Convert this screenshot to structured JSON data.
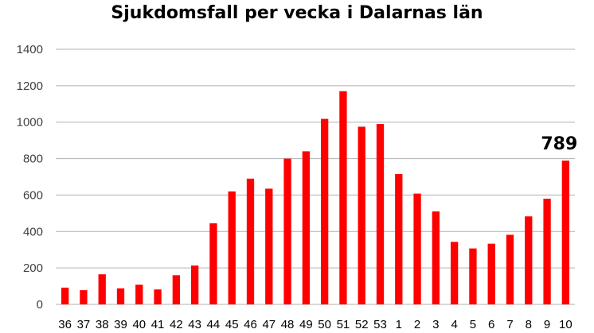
{
  "chart_data": {
    "type": "bar",
    "title": "Sjukdomsfall per vecka i Dalarnas län",
    "xlabel": "",
    "ylabel": "",
    "categories": [
      "36",
      "37",
      "38",
      "39",
      "40",
      "41",
      "42",
      "43",
      "44",
      "45",
      "46",
      "47",
      "48",
      "49",
      "50",
      "51",
      "52",
      "53",
      "1",
      "2",
      "3",
      "4",
      "5",
      "6",
      "7",
      "8",
      "9",
      "10"
    ],
    "values": [
      92,
      78,
      165,
      88,
      108,
      82,
      160,
      213,
      445,
      620,
      690,
      635,
      800,
      840,
      1018,
      1170,
      975,
      990,
      715,
      608,
      510,
      343,
      307,
      333,
      382,
      483,
      580,
      789
    ],
    "ylim": [
      0,
      1400
    ],
    "yticks": [
      0,
      200,
      400,
      600,
      800,
      1000,
      1200,
      1400
    ],
    "grid": true,
    "legend": "none",
    "bar_color": "#ff0000",
    "grid_color": "#b0b0b0",
    "annotation": {
      "category": "10",
      "text": "789"
    }
  }
}
